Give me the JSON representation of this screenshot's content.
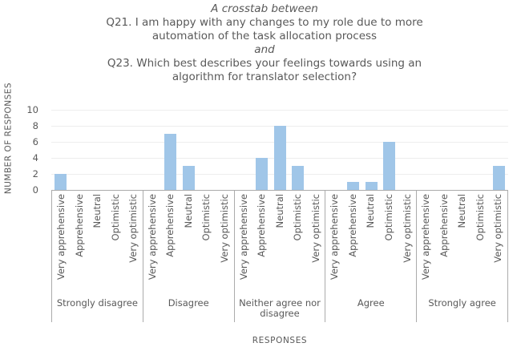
{
  "title": {
    "lines": [
      {
        "text": "A crosstab between",
        "italic": true
      },
      {
        "text": "Q21. I am happy with any changes to my role due to more",
        "italic": false
      },
      {
        "text": "automation of the task allocation process",
        "italic": false
      },
      {
        "text": "and",
        "italic": true
      },
      {
        "text": "Q23. Which best describes your feelings towards using an",
        "italic": false
      },
      {
        "text": "algorithm for translator selection?",
        "italic": false
      }
    ]
  },
  "chart_data": {
    "type": "bar",
    "title": "A crosstab between Q21. I am happy with any changes to my role due to more automation of the task allocation process and Q23. Which best describes your feelings towards using an algorithm for translator selection?",
    "xlabel": "RESPONSES",
    "ylabel": "NUMBER OF RESPONSES",
    "ylim": [
      0,
      10
    ],
    "yticks": [
      0,
      2,
      4,
      6,
      8,
      10
    ],
    "grid": true,
    "legend": "none",
    "bar_color": "#A0C6E8",
    "categories": [
      "Very apprehensive",
      "Apprehensive",
      "Neutral",
      "Optimistic",
      "Very optimistic"
    ],
    "groups": [
      "Strongly disagree",
      "Disagree",
      "Neither agree nor disagree",
      "Agree",
      "Strongly agree"
    ],
    "series": [
      {
        "group": "Strongly disagree",
        "values": [
          2,
          0,
          0,
          0,
          0
        ]
      },
      {
        "group": "Disagree",
        "values": [
          0,
          7,
          3,
          0,
          0
        ]
      },
      {
        "group": "Neither agree nor disagree",
        "values": [
          0,
          4,
          8,
          3,
          0
        ]
      },
      {
        "group": "Agree",
        "values": [
          0,
          1,
          1,
          6,
          0
        ]
      },
      {
        "group": "Strongly agree",
        "values": [
          0,
          0,
          0,
          0,
          3
        ]
      }
    ]
  },
  "colors": {
    "bar": "#A0C6E8",
    "text": "#595959",
    "border": "#ABABAB",
    "gridline": "#EDEDED",
    "background": "#FFFFFF"
  }
}
